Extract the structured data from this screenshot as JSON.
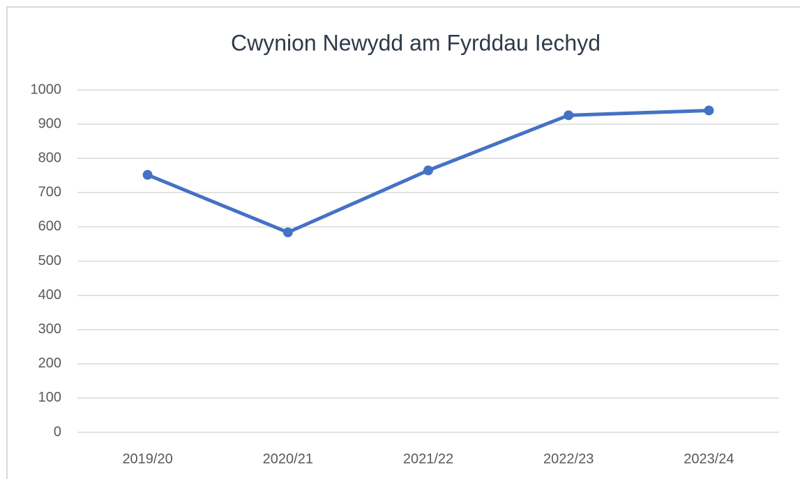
{
  "chart_data": {
    "type": "line",
    "title": "Cwynion Newydd am Fyrddau Iechyd",
    "categories": [
      "2019/20",
      "2020/21",
      "2021/22",
      "2022/23",
      "2023/24"
    ],
    "series": [
      {
        "name": "Cwynion",
        "color": "#4472c4",
        "values": [
          752,
          584,
          765,
          926,
          940
        ]
      }
    ],
    "ylim": [
      0,
      1000
    ],
    "yticks": [
      0,
      100,
      200,
      300,
      400,
      500,
      600,
      700,
      800,
      900,
      1000
    ],
    "grid": true
  }
}
